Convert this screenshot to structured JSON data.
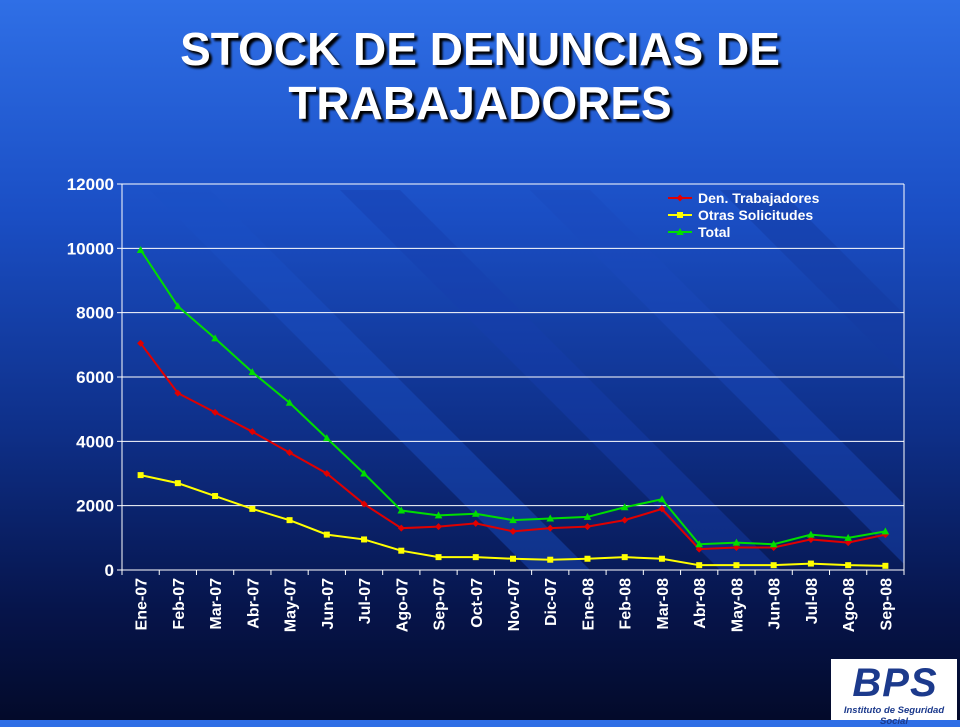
{
  "title_lines": [
    "STOCK DE DENUNCIAS DE",
    "TRABAJADORES"
  ],
  "logo": {
    "mark": "BPS",
    "subtitle": "Instituto de Seguridad Social"
  },
  "colors": {
    "series": [
      "#e00000",
      "#ffff00",
      "#00dd00"
    ],
    "background_top": "#2f6fe6",
    "background_bottom": "#030a2a"
  },
  "chart_data": {
    "type": "line",
    "title": "",
    "xlabel": "",
    "ylabel": "",
    "ylim": [
      0,
      12000
    ],
    "y_ticks": [
      0,
      2000,
      4000,
      6000,
      8000,
      10000,
      12000
    ],
    "grid": "horizontal",
    "legend_position": "top-right",
    "categories": [
      "Ene-07",
      "Feb-07",
      "Mar-07",
      "Abr-07",
      "May-07",
      "Jun-07",
      "Jul-07",
      "Ago-07",
      "Sep-07",
      "Oct-07",
      "Nov-07",
      "Dic-07",
      "Ene-08",
      "Feb-08",
      "Mar-08",
      "Abr-08",
      "May-08",
      "Jun-08",
      "Jul-08",
      "Ago-08",
      "Sep-08"
    ],
    "series": [
      {
        "name": "Den. Trabajadores",
        "color": "#e00000",
        "marker": "diamond",
        "values": [
          7050,
          5500,
          4900,
          4300,
          3650,
          3000,
          2050,
          1300,
          1350,
          1450,
          1200,
          1300,
          1350,
          1550,
          1900,
          650,
          700,
          700,
          950,
          850,
          1100
        ]
      },
      {
        "name": "Otras Solicitudes",
        "color": "#ffff00",
        "marker": "square",
        "values": [
          2950,
          2700,
          2300,
          1900,
          1550,
          1100,
          950,
          600,
          400,
          400,
          350,
          320,
          350,
          400,
          350,
          150,
          150,
          150,
          200,
          150,
          130
        ]
      },
      {
        "name": "Total",
        "color": "#00dd00",
        "marker": "triangle",
        "values": [
          9950,
          8200,
          7200,
          6150,
          5200,
          4100,
          3000,
          1850,
          1700,
          1750,
          1550,
          1600,
          1650,
          1950,
          2200,
          800,
          850,
          800,
          1100,
          1000,
          1200
        ]
      }
    ]
  }
}
